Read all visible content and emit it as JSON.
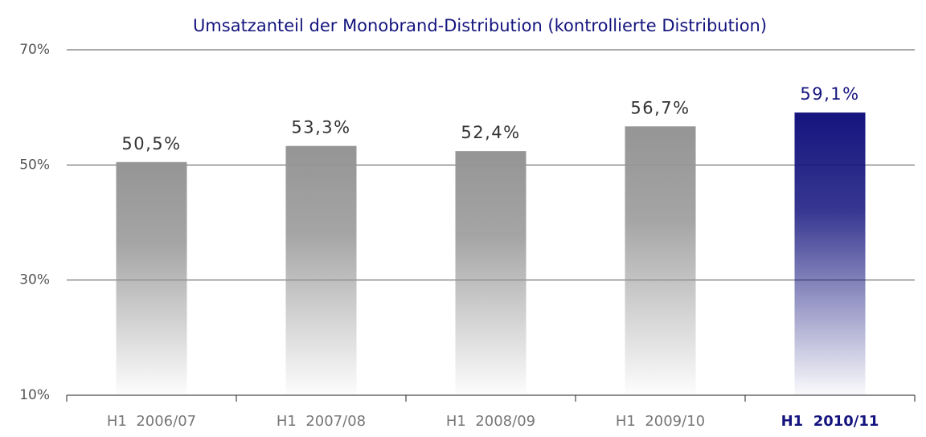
{
  "chart_data": {
    "type": "bar",
    "title": "Umsatzanteil der Monobrand-Distribution (kontrollierte Distribution)",
    "categories": [
      "H1  2006/07",
      "H1  2007/08",
      "H1  2008/09",
      "H1  2009/10",
      "H1  2010/11"
    ],
    "values": [
      50.5,
      53.3,
      52.4,
      56.7,
      59.1
    ],
    "value_labels": [
      "50,5%",
      "53,3%",
      "52,4%",
      "56,7%",
      "59,1%"
    ],
    "colors": [
      "#959595",
      "#959595",
      "#959595",
      "#959595",
      "#14147e"
    ],
    "label_colors": [
      "#333333",
      "#333333",
      "#333333",
      "#333333",
      "#14147e"
    ],
    "ylim": [
      10,
      70
    ],
    "yticks": [
      {
        "value": 10,
        "label": "10%"
      },
      {
        "value": 30,
        "label": "30%"
      },
      {
        "value": 50,
        "label": "50%"
      },
      {
        "value": 70,
        "label": "70%"
      }
    ],
    "grid": true
  }
}
